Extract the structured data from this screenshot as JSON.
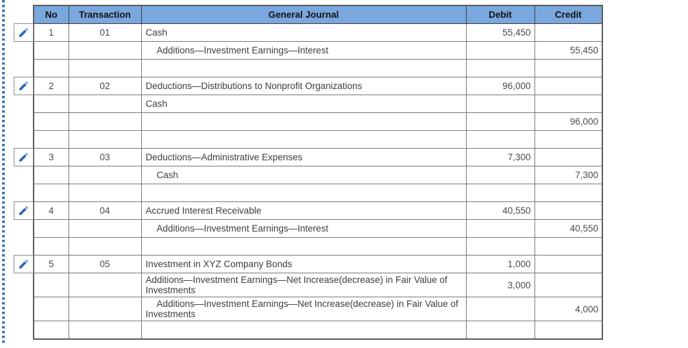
{
  "colors": {
    "header_bg": "#7aa7de",
    "pencil_blue": "#2b6cb5",
    "pencil_blue_light": "#6d9bd6",
    "dotted_border_blue": "#3b74ae"
  },
  "icons": {
    "edit": "pencil-icon"
  },
  "table": {
    "columns": [
      {
        "key": "no",
        "label": "No"
      },
      {
        "key": "transaction",
        "label": "Transaction"
      },
      {
        "key": "journal",
        "label": "General Journal"
      },
      {
        "key": "debit",
        "label": "Debit"
      },
      {
        "key": "credit",
        "label": "Credit"
      }
    ],
    "rows": [
      {
        "no": "1",
        "transaction": "01",
        "journal": "Cash",
        "debit": "55,450",
        "credit": "",
        "edit": true
      },
      {
        "no": "",
        "transaction": "",
        "journal": "Additions—Investment Earnings—Interest",
        "indent": true,
        "debit": "",
        "credit": "55,450"
      },
      {
        "no": "",
        "transaction": "",
        "journal": "",
        "debit": "",
        "credit": ""
      },
      {
        "no": "2",
        "transaction": "02",
        "journal": "Deductions—Distributions to Nonprofit Organizations",
        "debit": "96,000",
        "credit": "",
        "edit": true
      },
      {
        "no": "",
        "transaction": "",
        "journal": "Cash",
        "debit": "",
        "credit": ""
      },
      {
        "no": "",
        "transaction": "",
        "journal": "",
        "debit": "",
        "credit": "96,000"
      },
      {
        "no": "",
        "transaction": "",
        "journal": "",
        "debit": "",
        "credit": ""
      },
      {
        "no": "3",
        "transaction": "03",
        "journal": "Deductions—Administrative Expenses",
        "debit": "7,300",
        "credit": "",
        "edit": true
      },
      {
        "no": "",
        "transaction": "",
        "journal": "Cash",
        "indent": true,
        "debit": "",
        "credit": "7,300"
      },
      {
        "no": "",
        "transaction": "",
        "journal": "",
        "debit": "",
        "credit": ""
      },
      {
        "no": "4",
        "transaction": "04",
        "journal": "Accrued Interest Receivable",
        "debit": "40,550",
        "credit": "",
        "edit": true
      },
      {
        "no": "",
        "transaction": "",
        "journal": "Additions—Investment Earnings—Interest",
        "indent": true,
        "debit": "",
        "credit": "40,550"
      },
      {
        "no": "",
        "transaction": "",
        "journal": "",
        "debit": "",
        "credit": ""
      },
      {
        "no": "5",
        "transaction": "05",
        "journal": "Investment in XYZ Company Bonds",
        "debit": "1,000",
        "credit": "",
        "edit": true
      },
      {
        "no": "",
        "transaction": "",
        "journal": "Additions—Investment Earnings—Net Increase(decrease) in Fair Value of Investments",
        "debit": "3,000",
        "credit": "",
        "tall": true
      },
      {
        "no": "",
        "transaction": "",
        "journal": "Additions—Investment Earnings—Net Increase(decrease) in Fair Value of Investments",
        "indent": true,
        "debit": "",
        "credit": "4,000",
        "tall": true
      },
      {
        "no": "",
        "transaction": "",
        "journal": "",
        "debit": "",
        "credit": ""
      }
    ]
  }
}
